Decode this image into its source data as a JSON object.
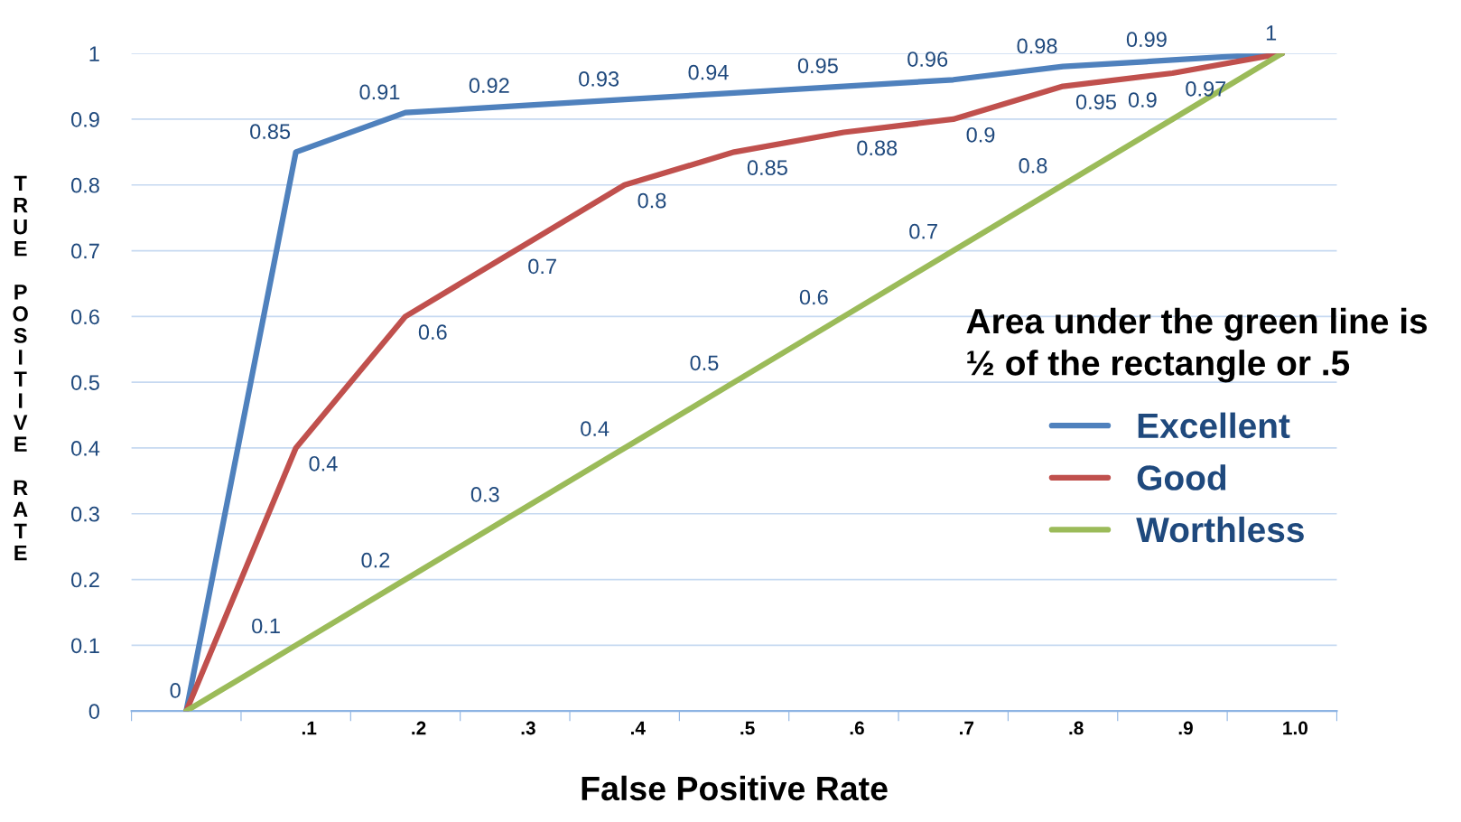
{
  "chart_data": {
    "type": "line",
    "xlabel": "False Positive Rate",
    "ylabel": "TRUE POSITIVE RATE",
    "categories": [
      null,
      ".1",
      ".2",
      ".3",
      ".4",
      ".5",
      ".6",
      ".7",
      ".8",
      ".9",
      "1.0"
    ],
    "series": [
      {
        "name": "Excellent",
        "color": "#4f81bd",
        "values": [
          0,
          0.85,
          0.91,
          0.92,
          0.93,
          0.94,
          0.95,
          0.96,
          0.98,
          0.99,
          1
        ],
        "value_labels": [
          "0",
          "0.85",
          "0.91",
          "0.92",
          "0.93",
          "0.94",
          "0.95",
          "0.96",
          "0.98",
          "0.99",
          "1"
        ]
      },
      {
        "name": "Good",
        "color": "#c0504d",
        "values": [
          0,
          0.4,
          0.6,
          0.7,
          0.8,
          0.85,
          0.88,
          0.9,
          0.95,
          0.97,
          1
        ],
        "value_labels": [
          null,
          "0.4",
          "0.6",
          "0.7",
          "0.8",
          "0.85",
          "0.88",
          "0.9",
          "0.95",
          "0.97",
          null
        ]
      },
      {
        "name": "Worthless",
        "color": "#9bbb59",
        "values": [
          0,
          0.1,
          0.2,
          0.3,
          0.4,
          0.5,
          0.6,
          0.7,
          0.8,
          0.9,
          1
        ],
        "value_labels": [
          null,
          "0.1",
          "0.2",
          "0.3",
          "0.4",
          "0.5",
          "0.6",
          "0.7",
          "0.8",
          "0.9",
          null
        ]
      }
    ],
    "ylim": [
      0,
      1
    ],
    "yticks": [
      0,
      0.1,
      0.2,
      0.3,
      0.4,
      0.5,
      0.6,
      0.7,
      0.8,
      0.9,
      1
    ],
    "grid": "y",
    "legend": "right",
    "marker": "none",
    "line_style": "solid",
    "annotations": [
      "Area under the green line is ½ of the rectangle or .5"
    ]
  }
}
